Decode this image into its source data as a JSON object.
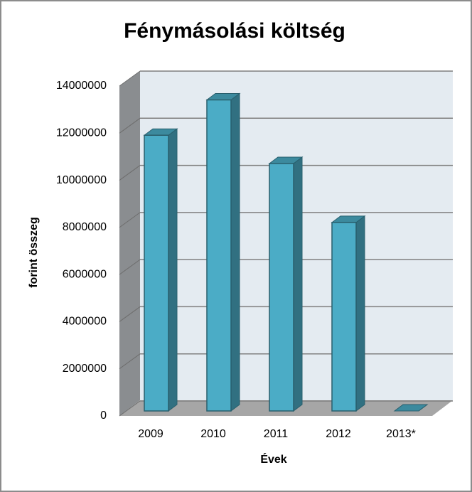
{
  "chart_data": {
    "type": "bar",
    "title": "Fénymásolási költség",
    "x_label": "Évek",
    "y_label": "forint összeg",
    "categories": [
      "2009",
      "2010",
      "2011",
      "2012",
      "2013*"
    ],
    "values": [
      11700000,
      13200000,
      10500000,
      8000000,
      0
    ],
    "color": "#4bacc6",
    "ylim": [
      0,
      14000000
    ],
    "yticks": [
      0,
      2000000,
      4000000,
      6000000,
      8000000,
      10000000,
      12000000,
      14000000
    ],
    "grid": true
  }
}
